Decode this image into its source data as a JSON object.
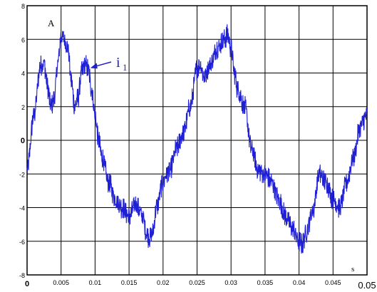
{
  "chart_data": {
    "type": "line",
    "title": "",
    "xlabel": "s",
    "ylabel": "A",
    "xlim": [
      0,
      0.05
    ],
    "ylim": [
      -8,
      8
    ],
    "grid": true,
    "x_ticks": [
      "0",
      "0.005",
      "0.01",
      "0.015",
      "0.02",
      "0.025",
      "0.03",
      "0.035",
      "0.04",
      "0.045",
      "0.05"
    ],
    "y_ticks": [
      "-8",
      "-6",
      "-4",
      "-2",
      "0",
      "2",
      "4",
      "6",
      "8"
    ],
    "series": [
      {
        "name": "i1",
        "label_main": "i",
        "label_sub": "1",
        "color": "#1f1fd6",
        "x": [
          0,
          0.001,
          0.002,
          0.0025,
          0.003,
          0.0035,
          0.004,
          0.0045,
          0.005,
          0.0055,
          0.006,
          0.0065,
          0.007,
          0.0075,
          0.008,
          0.0085,
          0.009,
          0.0095,
          0.01,
          0.0105,
          0.011,
          0.012,
          0.013,
          0.014,
          0.015,
          0.016,
          0.017,
          0.0175,
          0.018,
          0.0185,
          0.019,
          0.02,
          0.0205,
          0.021,
          0.022,
          0.023,
          0.024,
          0.025,
          0.0255,
          0.026,
          0.027,
          0.028,
          0.029,
          0.0295,
          0.03,
          0.0305,
          0.031,
          0.032,
          0.033,
          0.034,
          0.035,
          0.036,
          0.037,
          0.038,
          0.039,
          0.04,
          0.0405,
          0.041,
          0.042,
          0.043,
          0.044,
          0.045,
          0.046,
          0.047,
          0.048,
          0.049,
          0.05
        ],
        "y": [
          -1.8,
          1.5,
          4.5,
          4.6,
          3.2,
          2.0,
          2.5,
          4.5,
          6.2,
          6.0,
          5.5,
          3.5,
          2.0,
          2.5,
          4.0,
          4.5,
          4.2,
          3.0,
          1.5,
          0.0,
          -1.0,
          -2.5,
          -3.5,
          -4.0,
          -4.5,
          -3.8,
          -4.5,
          -5.5,
          -5.8,
          -5.5,
          -4.0,
          -2.5,
          -2.0,
          -1.8,
          -0.5,
          0.5,
          2.0,
          4.2,
          4.5,
          3.8,
          4.5,
          5.5,
          6.0,
          6.3,
          5.5,
          4.0,
          3.0,
          2.0,
          -0.5,
          -1.8,
          -2.0,
          -2.5,
          -3.5,
          -4.5,
          -5.2,
          -6.0,
          -6.2,
          -5.5,
          -4.2,
          -2.0,
          -2.5,
          -3.5,
          -4.0,
          -2.5,
          -1.0,
          0.8,
          1.5
        ]
      }
    ]
  }
}
